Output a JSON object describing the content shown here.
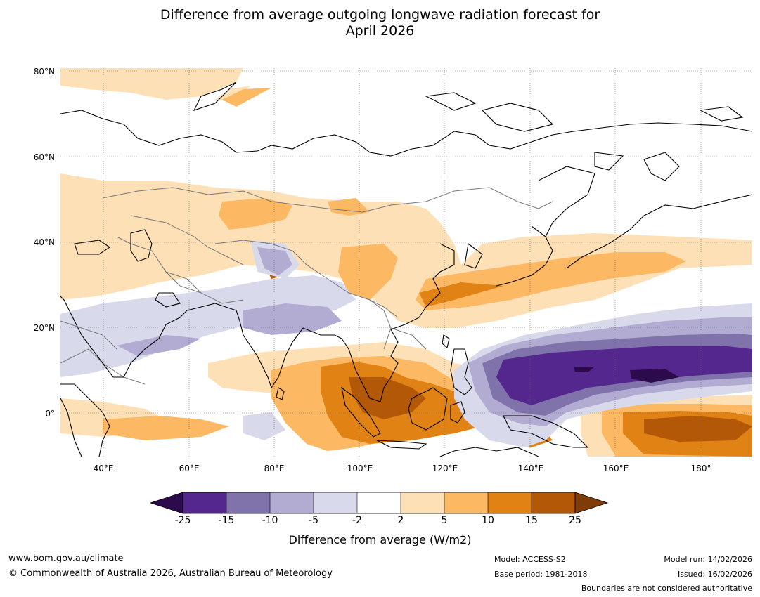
{
  "title": {
    "line1": "Difference from average outgoing longwave radiation forecast for",
    "line2": "April 2026"
  },
  "map": {
    "lat_labels": [
      "80°N",
      "60°N",
      "40°N",
      "20°N",
      "0°"
    ],
    "lon_labels": [
      "40°E",
      "60°E",
      "80°E",
      "100°E",
      "120°E",
      "140°E",
      "160°E",
      "180°"
    ],
    "lat_range": [
      -10,
      80
    ],
    "lon_range": [
      30,
      192
    ]
  },
  "colorbar": {
    "ticks": [
      "-25",
      "-15",
      "-10",
      "-5",
      "-2",
      "2",
      "5",
      "10",
      "15",
      "25"
    ],
    "colors": [
      "#2d0a4b",
      "#54278f",
      "#8073ac",
      "#b2abd2",
      "#d8daeb",
      "#ffffff",
      "#fee0b6",
      "#fdb863",
      "#e08214",
      "#b35806",
      "#7f3b08"
    ],
    "label": "Difference from average (W/m2)"
  },
  "footer": {
    "website": "www.bom.gov.au/climate",
    "copyright": "© Commonwealth of Australia 2026, Australian Bureau of Meteorology",
    "model": "Model: ACCESS-S2",
    "base_period": "Base period: 1981-2018",
    "model_run": "Model run: 14/02/2026",
    "issued": "Issued: 16/02/2026",
    "disclaimer": "Boundaries are not considered authoritative"
  }
}
